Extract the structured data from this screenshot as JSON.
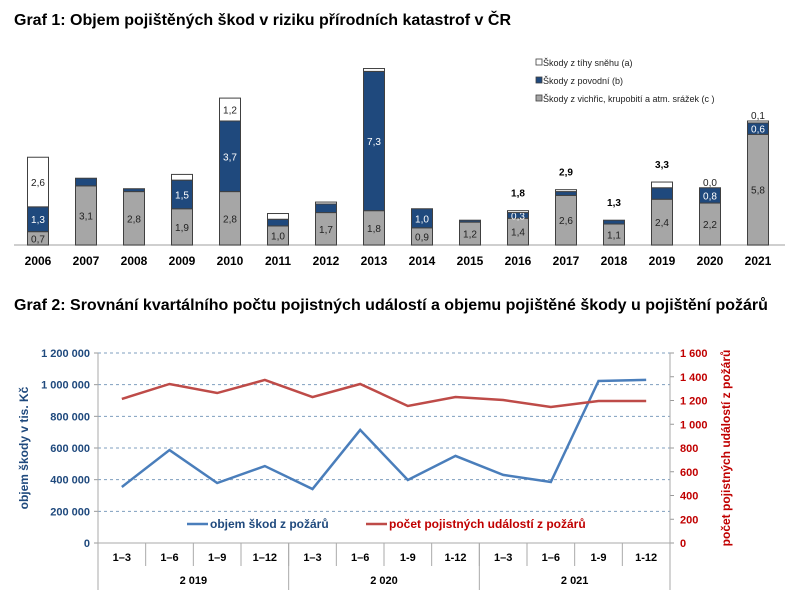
{
  "chart_data": [
    {
      "type": "bar",
      "stacked": true,
      "title": "Graf 1: Objem pojištěných škod v riziku přírodních katastrof v ČR",
      "categories": [
        "2006",
        "2007",
        "2008",
        "2009",
        "2010",
        "2011",
        "2012",
        "2013",
        "2014",
        "2015",
        "2016",
        "2017",
        "2018",
        "2019",
        "2020",
        "2021"
      ],
      "series": [
        {
          "name": "Škody z vichřic, krupobití a atm. srážek (c )",
          "color": "#a6a6a6",
          "values": [
            0.7,
            3.1,
            2.8,
            1.9,
            2.8,
            1.0,
            1.7,
            1.8,
            0.9,
            1.2,
            1.4,
            2.6,
            1.1,
            2.4,
            2.2,
            5.8
          ],
          "labels": [
            "0,7",
            "3,1",
            "2,8",
            "1,9",
            "2,8",
            "1,0",
            "1,7",
            "1,8",
            "0,9",
            "1,2",
            "1,4",
            "2,6",
            "1,1",
            "2,4",
            "2,2",
            "5,8"
          ]
        },
        {
          "name": "Škody z povodní (b)",
          "color": "#1f497d",
          "values": [
            1.3,
            0.4,
            0.15,
            1.5,
            3.7,
            0.35,
            0.45,
            7.3,
            1.0,
            0.1,
            0.3,
            0.2,
            0.2,
            0.6,
            0.8,
            0.6
          ],
          "labels": [
            "1,3",
            null,
            null,
            "1,5",
            "3,7",
            null,
            null,
            "7,3",
            "1,0",
            null,
            "0,3",
            null,
            null,
            null,
            "0,8",
            "0,6"
          ]
        },
        {
          "name": "Škody z tíhy sněhu (a)",
          "color": "#ffffff",
          "values": [
            2.6,
            0.0,
            0.0,
            0.3,
            1.2,
            0.3,
            0.1,
            0.15,
            0.0,
            0.0,
            0.1,
            0.1,
            0.0,
            0.3,
            0.0,
            0.1
          ],
          "labels": [
            "2,6",
            null,
            null,
            null,
            "1,2",
            null,
            null,
            null,
            null,
            null,
            null,
            null,
            null,
            null,
            "0,0",
            "0,1"
          ]
        }
      ],
      "total_labels": [
        null,
        null,
        null,
        null,
        null,
        null,
        null,
        null,
        null,
        null,
        "1,8",
        "2,9",
        "1,3",
        "3,3",
        null,
        null
      ],
      "ylim": [
        0,
        9.5
      ],
      "legend_position": "top-right",
      "grid": false
    },
    {
      "type": "line",
      "title": "Graf 2: Srovnání kvartálního počtu pojistných událostí a objemu pojištěné škody u pojištění požárů",
      "categories": [
        "1–3",
        "1–6",
        "1–9",
        "1–12",
        "1–3",
        "1–6",
        "1-9",
        "1-12",
        "1–3",
        "1–6",
        "1-9",
        "1-12"
      ],
      "groups": [
        {
          "label": "2 019",
          "span": 4
        },
        {
          "label": "2 020",
          "span": 4
        },
        {
          "label": "2 021",
          "span": 4
        }
      ],
      "ylabel": "objem škody v tis. Kč",
      "y2label": "počet pojistných událostí z požárů",
      "ylim": [
        0,
        1200000
      ],
      "y2lim": [
        0,
        1600
      ],
      "yticks": [
        "0",
        "200 000",
        "400 000",
        "600 000",
        "800 000",
        "1 000 000",
        "1 200 000"
      ],
      "y2ticks": [
        "0",
        "200",
        "400",
        "600",
        "800",
        "1 000",
        "1 200",
        "1 400",
        "1 600"
      ],
      "grid": true,
      "legend_position": "bottom-inside",
      "series": [
        {
          "name": "objem škod z požárů",
          "axis": "left",
          "color": "#4a7ebb",
          "values": [
            354000,
            587000,
            379000,
            486000,
            341000,
            714000,
            398000,
            550000,
            430000,
            385000,
            1023000,
            1030000
          ]
        },
        {
          "name": "počet pojistných událostí z požárů",
          "axis": "right",
          "color": "#be4b48",
          "values": [
            1213,
            1339,
            1263,
            1373,
            1229,
            1339,
            1154,
            1229,
            1204,
            1145,
            1196,
            1196
          ]
        }
      ],
      "left_axis_color": "#1f497d",
      "right_axis_color": "#c00000"
    }
  ]
}
